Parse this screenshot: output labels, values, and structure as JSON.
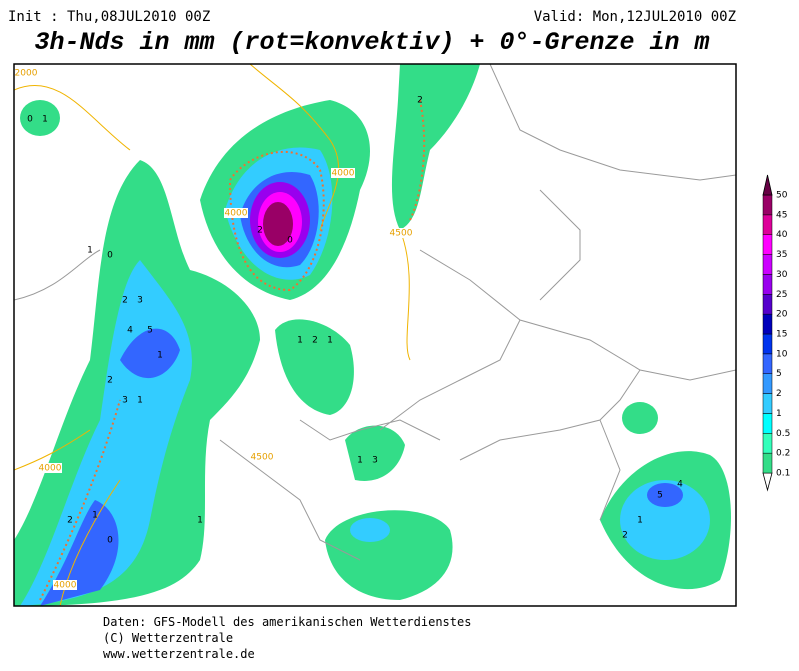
{
  "header": {
    "init": "Init : Thu,08JUL2010 00Z",
    "valid": "Valid: Mon,12JUL2010 00Z",
    "title": "3h-Nds in mm (rot=konvektiv) + 0°-Grenze in m"
  },
  "legend": {
    "ticks": [
      0.1,
      0.2,
      0.5,
      1,
      2,
      5,
      10,
      15,
      20,
      25,
      30,
      35,
      40,
      45,
      50
    ],
    "colors": [
      "#33dd88",
      "#33ffbb",
      "#00ffff",
      "#33ccff",
      "#3399ff",
      "#3366ff",
      "#0033ee",
      "#0000bb",
      "#5500cc",
      "#9900ee",
      "#cc00ff",
      "#ff00ff",
      "#dd0099",
      "#990066"
    ],
    "top_color": "#660044"
  },
  "map": {
    "contour_labels": [
      "2000",
      "4000",
      "4000",
      "4500",
      "4500",
      "4000",
      "4000"
    ],
    "grid_values": [
      "0",
      "1",
      "1",
      "0",
      "2",
      "3",
      "5",
      "4",
      "1",
      "2",
      "3",
      "1",
      "2",
      "1",
      "0",
      "1",
      "2",
      "0",
      "1",
      "2",
      "1",
      "1",
      "3",
      "2",
      "4",
      "5",
      "1",
      "2"
    ]
  },
  "footer": {
    "line1": "Daten: GFS-Modell des amerikanischen Wetterdienstes",
    "line2": "(C) Wetterzentrale",
    "line3": "www.wetterzentrale.de"
  }
}
